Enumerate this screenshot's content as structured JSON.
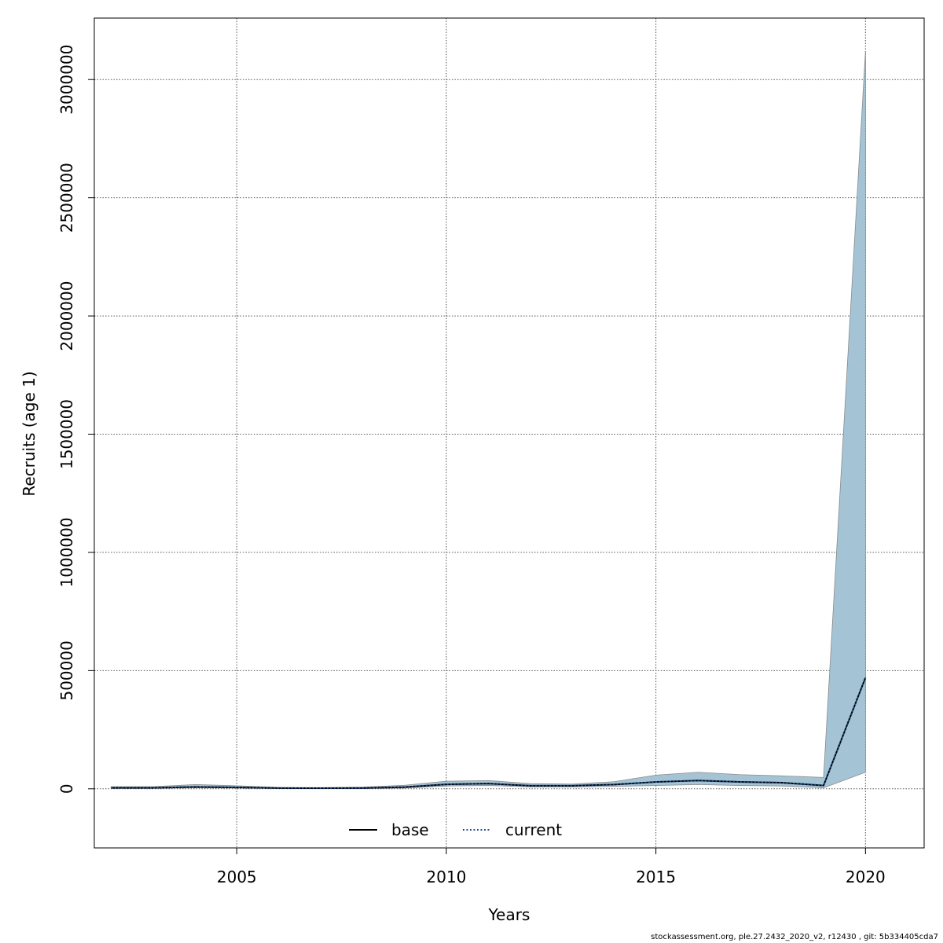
{
  "chart_data": {
    "type": "line",
    "xlabel": "Years",
    "ylabel": "Recruits (age 1)",
    "xlim": [
      2001.6,
      2021.4
    ],
    "ylim": [
      -250000,
      3260000
    ],
    "x_ticks": [
      2005,
      2010,
      2015,
      2020
    ],
    "x_tick_labels": [
      "2005",
      "2010",
      "2015",
      "2020"
    ],
    "y_ticks": [
      0,
      500000,
      1000000,
      1500000,
      2000000,
      2500000,
      3000000
    ],
    "y_tick_labels": [
      "0",
      "500000",
      "1000000",
      "1500000",
      "2000000",
      "2500000",
      "3000000"
    ],
    "grid": true,
    "legend_position": "bottom-center",
    "years": [
      2002,
      2003,
      2004,
      2005,
      2006,
      2007,
      2008,
      2009,
      2010,
      2011,
      2012,
      2013,
      2014,
      2015,
      2016,
      2017,
      2018,
      2019,
      2020
    ],
    "band": {
      "fill": "#a4c4d6",
      "lower": [
        2000,
        2000,
        4000,
        3000,
        1000,
        1000,
        1000,
        3000,
        12000,
        14000,
        8000,
        8000,
        10000,
        14000,
        18000,
        14000,
        12000,
        4000,
        70000
      ],
      "upper": [
        9000,
        9000,
        18000,
        13000,
        6000,
        5000,
        7000,
        15000,
        32000,
        35000,
        22000,
        20000,
        30000,
        58000,
        70000,
        60000,
        55000,
        48000,
        3120000
      ]
    },
    "series": [
      {
        "name": "base",
        "style": "solid",
        "color": "#000000",
        "values": [
          4000,
          4000,
          8000,
          6000,
          3000,
          2500,
          3000,
          7000,
          19000,
          22000,
          13000,
          13000,
          18000,
          29000,
          35000,
          29000,
          26000,
          14000,
          470000
        ]
      },
      {
        "name": "current",
        "style": "dotted",
        "color": "#1f4e8c",
        "values": [
          4000,
          4000,
          8000,
          6000,
          3000,
          2500,
          3000,
          7000,
          19000,
          22000,
          13000,
          13000,
          18000,
          29000,
          35000,
          29000,
          26000,
          14000,
          470000
        ]
      }
    ]
  },
  "footer": "stockassessment.org, ple.27.2432_2020_v2, r12430 , git: 5b334405cda7"
}
